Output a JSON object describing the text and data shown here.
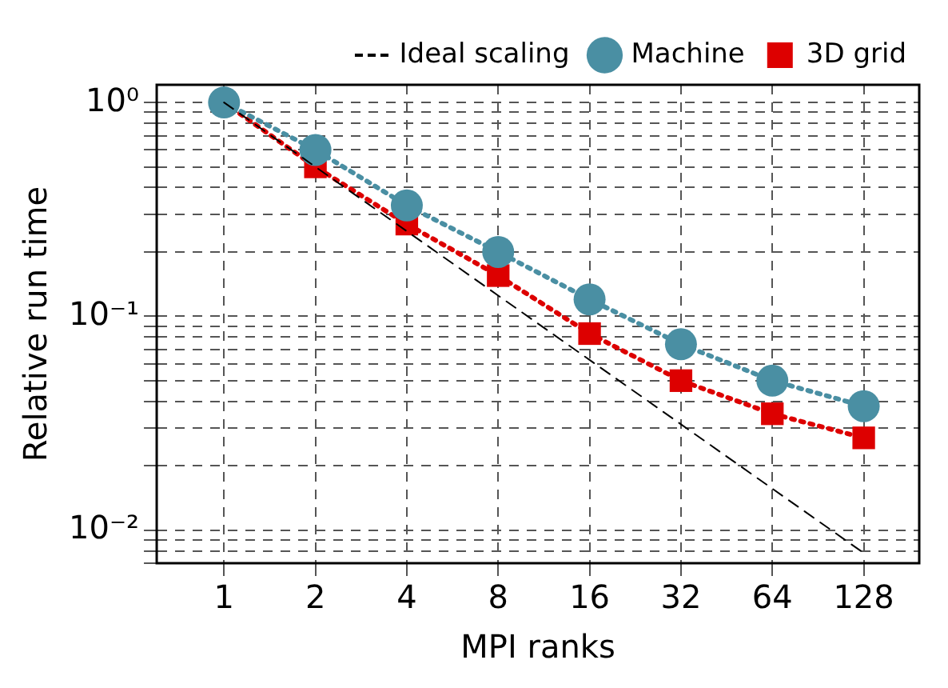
{
  "chart_data": {
    "type": "line",
    "xlabel": "MPI ranks",
    "ylabel": "Relative run time",
    "log": "xy",
    "grid": true,
    "legend": "top right",
    "xlim": [
      0.6,
      195
    ],
    "xticks": [
      1,
      2,
      4,
      8,
      16,
      32,
      64,
      128
    ],
    "ylim": [
      0.007,
      1.21
    ],
    "yticks": [
      {
        "value": 0.007,
        "label": null
      },
      {
        "value": 0.008,
        "label": null
      },
      {
        "value": 0.009,
        "label": null
      },
      {
        "value": 0.01,
        "label": "10⁻²"
      },
      {
        "value": 0.02,
        "label": null
      },
      {
        "value": 0.03,
        "label": null
      },
      {
        "value": 0.04,
        "label": null
      },
      {
        "value": 0.05,
        "label": null
      },
      {
        "value": 0.06,
        "label": null
      },
      {
        "value": 0.07,
        "label": null
      },
      {
        "value": 0.08,
        "label": null
      },
      {
        "value": 0.09,
        "label": null
      },
      {
        "value": 0.1,
        "label": "10⁻¹"
      },
      {
        "value": 0.2,
        "label": null
      },
      {
        "value": 0.3,
        "label": null
      },
      {
        "value": 0.4,
        "label": null
      },
      {
        "value": 0.5,
        "label": null
      },
      {
        "value": 0.6,
        "label": null
      },
      {
        "value": 0.7,
        "label": null
      },
      {
        "value": 0.8,
        "label": null
      },
      {
        "value": 0.9,
        "label": null
      },
      {
        "value": 1,
        "label": "10⁰"
      }
    ],
    "series": [
      {
        "name": "Ideal scaling",
        "type": "line",
        "color": "#000000",
        "line_style": "dashed",
        "marker": "none",
        "x": [
          1,
          2,
          4,
          8,
          16,
          32,
          64,
          128
        ],
        "values": [
          1,
          0.5,
          0.25,
          0.125,
          0.0625,
          0.03125,
          0.015625,
          0.0078125
        ]
      },
      {
        "name": "Machine",
        "type": "line",
        "color": "#4a8fa3",
        "line_style": "dotted",
        "marker": "circle",
        "x": [
          1,
          2,
          4,
          8,
          16,
          32,
          64,
          128
        ],
        "values": [
          1,
          0.6,
          0.33,
          0.2,
          0.12,
          0.074,
          0.05,
          0.038
        ]
      },
      {
        "name": "3D grid",
        "type": "line",
        "color": "#dd0000",
        "line_style": "dotted",
        "marker": "square",
        "x": [
          1,
          2,
          4,
          8,
          16,
          32,
          64,
          128
        ],
        "values": [
          1,
          0.5,
          0.27,
          0.155,
          0.083,
          0.05,
          0.035,
          0.027
        ]
      }
    ]
  }
}
